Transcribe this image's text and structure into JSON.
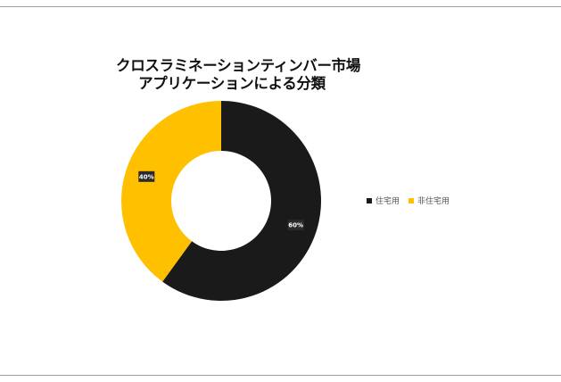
{
  "chart_data": {
    "type": "pie",
    "subtype": "donut",
    "title": [
      "クロスラミネーションティンバー市場",
      "アプリケーションによる分類"
    ],
    "categories": [
      "住宅用",
      "非住宅用"
    ],
    "values": [
      60,
      40
    ],
    "data_labels": [
      "60%",
      "40%"
    ],
    "colors": [
      "#1a1a1a",
      "#ffc000"
    ],
    "legend_position": "right"
  }
}
